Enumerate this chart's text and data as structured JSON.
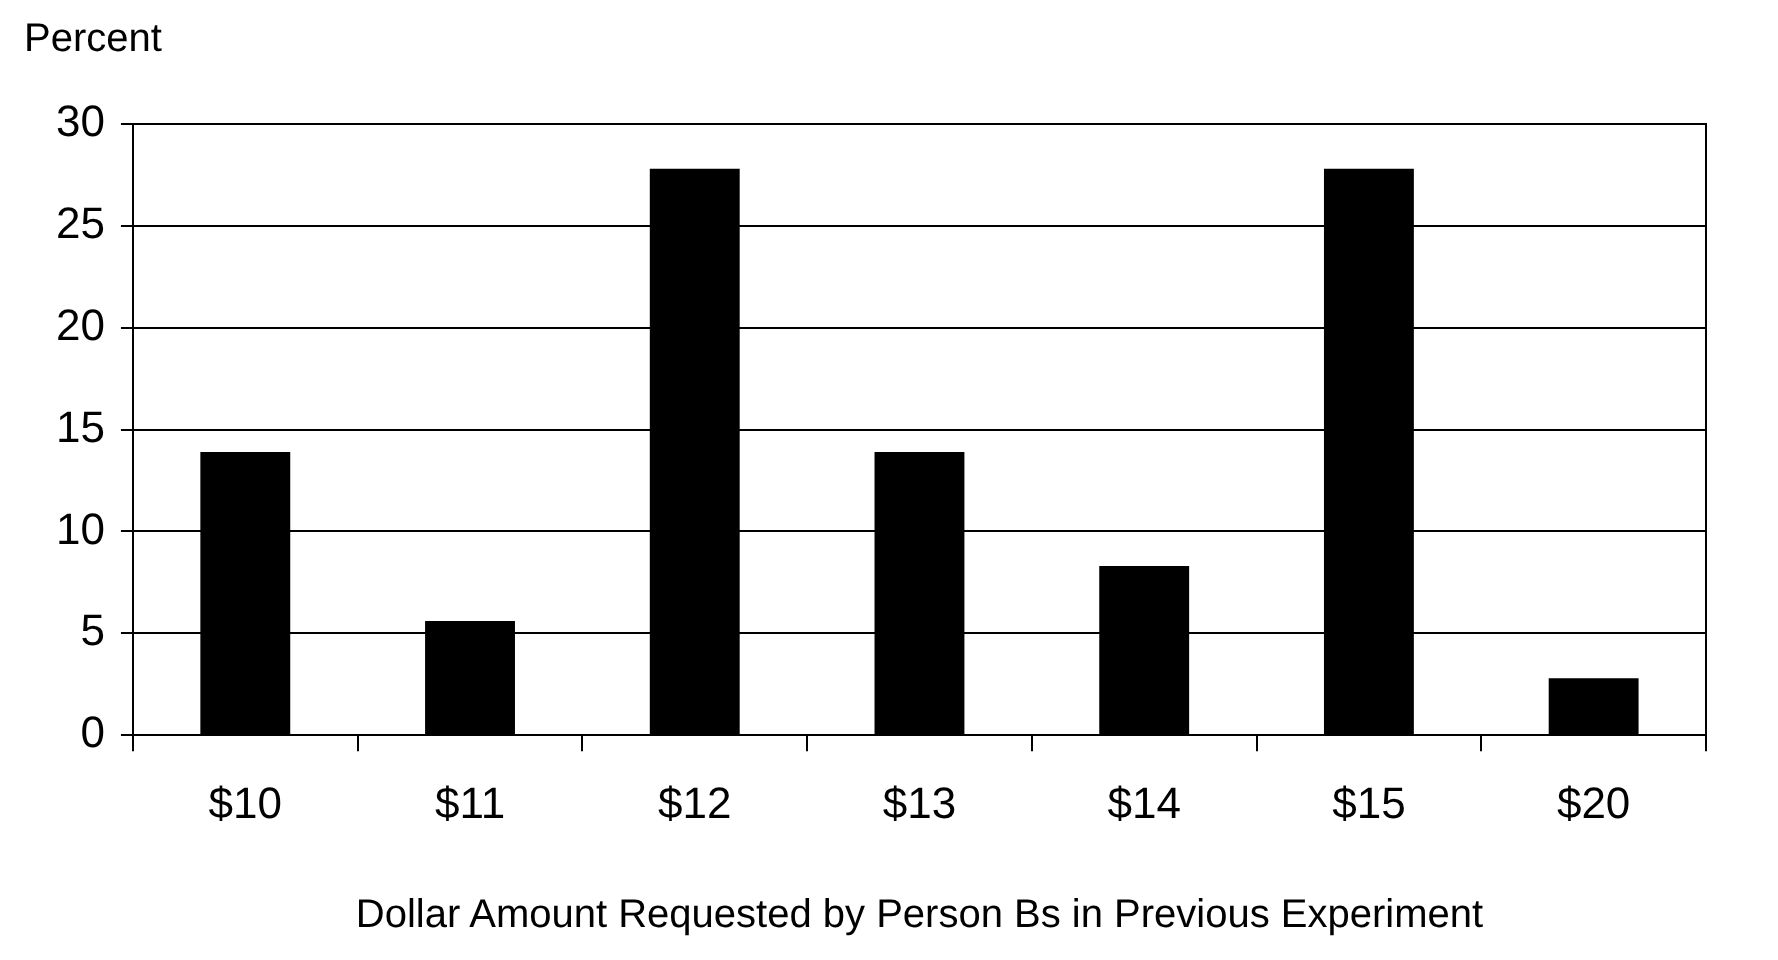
{
  "chart_data": {
    "type": "bar",
    "ylabel": "Percent",
    "xlabel": "Dollar Amount Requested by Person Bs in Previous Experiment",
    "categories": [
      "$10",
      "$11",
      "$12",
      "$13",
      "$14",
      "$15",
      "$20"
    ],
    "values": [
      13.9,
      5.6,
      27.8,
      13.9,
      8.3,
      27.8,
      2.8
    ],
    "color": "#000000",
    "ylim": [
      0,
      30
    ],
    "yticks": [
      0,
      5,
      10,
      15,
      20,
      25,
      30
    ],
    "grid": "y",
    "legend": false
  }
}
